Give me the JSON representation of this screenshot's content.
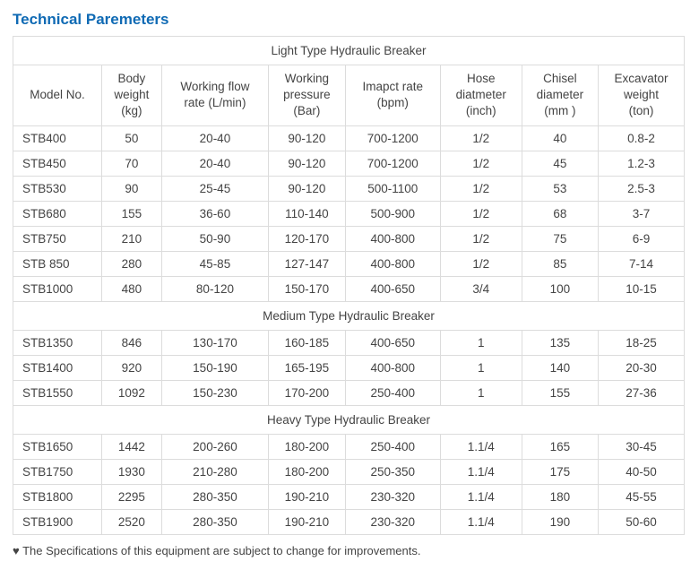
{
  "heading": "Technical Paremeters",
  "columns": [
    {
      "line1": "Model No.",
      "line2": ""
    },
    {
      "line1": "Body",
      "line2": "weight",
      "line3": "(kg)"
    },
    {
      "line1": "Working flow",
      "line2": "rate (L/min)"
    },
    {
      "line1": "Working",
      "line2": "pressure",
      "line3": "(Bar)"
    },
    {
      "line1": "Imapct rate",
      "line2": "(bpm)"
    },
    {
      "line1": "Hose",
      "line2": "diatmeter",
      "line3": "(inch)"
    },
    {
      "line1": "Chisel",
      "line2": "diameter",
      "line3": "(mm )"
    },
    {
      "line1": "Excavator",
      "line2": "weight",
      "line3": "(ton)"
    }
  ],
  "sections": [
    {
      "title": "Light Type Hydraulic Breaker",
      "rows": [
        [
          "STB400",
          "50",
          "20-40",
          "90-120",
          "700-1200",
          "1/2",
          "40",
          "0.8-2"
        ],
        [
          "STB450",
          "70",
          "20-40",
          "90-120",
          "700-1200",
          "1/2",
          "45",
          "1.2-3"
        ],
        [
          "STB530",
          "90",
          "25-45",
          "90-120",
          "500-1100",
          "1/2",
          "53",
          "2.5-3"
        ],
        [
          "STB680",
          "155",
          "36-60",
          "110-140",
          "500-900",
          "1/2",
          "68",
          "3-7"
        ],
        [
          "STB750",
          "210",
          "50-90",
          "120-170",
          "400-800",
          "1/2",
          "75",
          "6-9"
        ],
        [
          "STB 850",
          "280",
          "45-85",
          "127-147",
          "400-800",
          "1/2",
          "85",
          "7-14"
        ],
        [
          "STB1000",
          "480",
          "80-120",
          "150-170",
          "400-650",
          "3/4",
          "100",
          "10-15"
        ]
      ]
    },
    {
      "title": "Medium Type Hydraulic Breaker",
      "rows": [
        [
          "STB1350",
          "846",
          "130-170",
          "160-185",
          "400-650",
          "1",
          "135",
          "18-25"
        ],
        [
          "STB1400",
          "920",
          "150-190",
          "165-195",
          "400-800",
          "1",
          "140",
          "20-30"
        ],
        [
          "STB1550",
          "1092",
          "150-230",
          "170-200",
          "250-400",
          "1",
          "155",
          "27-36"
        ]
      ]
    },
    {
      "title": "Heavy Type Hydraulic Breaker",
      "rows": [
        [
          "STB1650",
          "1442",
          "200-260",
          "180-200",
          "250-400",
          "1.1/4",
          "165",
          "30-45"
        ],
        [
          "STB1750",
          "1930",
          "210-280",
          "180-200",
          "250-350",
          "1.1/4",
          "175",
          "40-50"
        ],
        [
          "STB1800",
          "2295",
          "280-350",
          "190-210",
          "230-320",
          "1.1/4",
          "180",
          "45-55"
        ],
        [
          "STB1900",
          "2520",
          "280-350",
          "190-210",
          "230-320",
          "1.1/4",
          "190",
          "50-60"
        ]
      ]
    }
  ],
  "note": "♥ The Specifications of this equipment are subject to change for improvements."
}
